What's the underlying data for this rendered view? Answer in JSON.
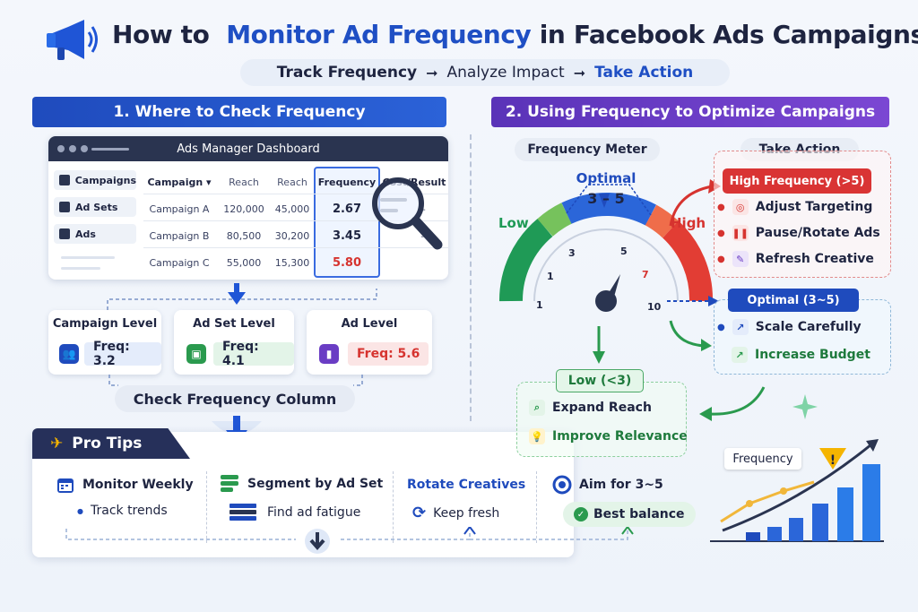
{
  "header": {
    "title_pre": "How to",
    "title_highlight": "Monitor Ad Frequency",
    "title_post": "in Facebook Ads Campaigns",
    "steps": [
      "Track Frequency",
      "Analyze Impact",
      "Take Action"
    ],
    "icon": "megaphone-icon"
  },
  "section1": {
    "title": "1. Where to Check Frequency",
    "dashboard": {
      "title": "Ads Manager Dashboard",
      "sidebar": [
        {
          "label": "Campaigns",
          "icon": "checkbox-icon"
        },
        {
          "label": "Ad Sets",
          "icon": "grid-icon"
        },
        {
          "label": "Ads",
          "icon": "card-icon"
        }
      ],
      "columns": [
        "Campaign",
        "Reach",
        "Reach",
        "Frequency",
        "Cost/Result"
      ],
      "rows": [
        {
          "campaign": "Campaign A",
          "reach1": "120,000",
          "reach2": "45,000",
          "frequency": "2.67",
          "cost": "–"
        },
        {
          "campaign": "Campaign B",
          "reach1": "80,500",
          "reach2": "30,200",
          "frequency": "3.45",
          "cost": "–"
        },
        {
          "campaign": "Campaign C",
          "reach1": "55,000",
          "reach2": "15,300",
          "frequency": "5.80",
          "cost": "–"
        }
      ]
    },
    "levels": [
      {
        "title": "Campaign Level",
        "value": "Freq: 3.2",
        "color": "#1f4bbd",
        "icon": "users-icon"
      },
      {
        "title": "Ad Set Level",
        "value": "Freq: 4.1",
        "color": "#2a9a4e",
        "icon": "adset-icon"
      },
      {
        "title": "Ad Level",
        "value": "Freq: 5.6",
        "color": "#d6332f",
        "icon": "bar-chart-icon"
      }
    ],
    "check_label": "Check Frequency Column"
  },
  "tips": {
    "title": "Pro Tips",
    "items": [
      {
        "title": "Monitor Weekly",
        "sub": "Track trends",
        "icon": "calendar-icon"
      },
      {
        "title": "Segment by Ad Set",
        "sub": "Find ad fatigue",
        "icon": "layers-icon"
      },
      {
        "title": "Rotate Creatives",
        "sub": "Keep fresh",
        "icon": "refresh-icon"
      },
      {
        "title": "Aim for 3~5",
        "sub": "Best balance",
        "icon": "target-icon"
      }
    ]
  },
  "section2": {
    "title": "2. Using Frequency to Optimize Campaigns",
    "meter": {
      "label": "Frequency Meter",
      "optimal_label": "Optimal",
      "optimal_range": "3 – 5",
      "low_label": "Low",
      "high_label": "High",
      "ticks": [
        "1",
        "1",
        "3",
        "5",
        "7",
        "10"
      ]
    },
    "action_label": "Take Action",
    "high": {
      "label": "High Frequency (>5)",
      "actions": [
        {
          "label": "Adjust Targeting",
          "icon": "target-icon"
        },
        {
          "label": "Pause/Rotate Ads",
          "icon": "pause-icon"
        },
        {
          "label": "Refresh Creative",
          "icon": "edit-icon"
        }
      ]
    },
    "optimal": {
      "label": "Optimal (3~5)",
      "actions": [
        {
          "label": "Scale Carefully",
          "icon": "trend-up-icon"
        },
        {
          "label": "Increase Budget",
          "icon": "growth-icon"
        }
      ]
    },
    "low": {
      "label": "Low (<3)",
      "actions": [
        {
          "label": "Expand Reach",
          "icon": "search-icon"
        },
        {
          "label": "Improve Relevance",
          "icon": "lightbulb-icon"
        }
      ]
    },
    "trend_chart": {
      "label": "Frequency",
      "icon": "warning-icon"
    }
  },
  "colors": {
    "blue": "#1f4bbd",
    "purple": "#6a3dc4",
    "green": "#2a9a4e",
    "red": "#d6332f",
    "navy": "#26305a"
  }
}
